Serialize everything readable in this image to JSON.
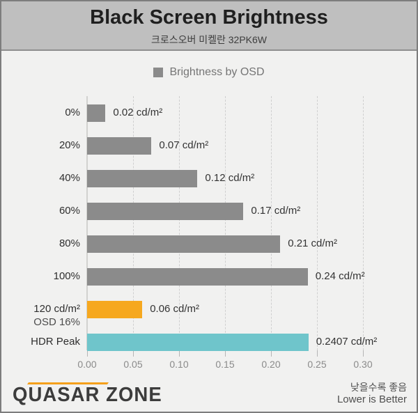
{
  "header": {
    "title": "Black Screen Brightness",
    "subtitle": "크로스오버 미켈란 32PK6W"
  },
  "legend": {
    "label": "Brightness by OSD",
    "swatch_color": "#8b8b8b"
  },
  "chart_data": {
    "type": "bar",
    "orientation": "horizontal",
    "title": "Black Screen Brightness",
    "subtitle": "크로스오버 미켈란 32PK6W",
    "series_name": "Brightness by OSD",
    "legend_position": "top-center",
    "grid": "vertical-dashed",
    "xlim": [
      0,
      0.3
    ],
    "x_ticks": [
      "0.00",
      "0.05",
      "0.10",
      "0.15",
      "0.20",
      "0.25",
      "0.30"
    ],
    "x_tick_values": [
      0.0,
      0.05,
      0.1,
      0.15,
      0.2,
      0.25,
      0.3
    ],
    "categories": [
      "0%",
      "20%",
      "40%",
      "60%",
      "80%",
      "100%",
      "120 cd/m²",
      "HDR Peak"
    ],
    "category_sublabels": [
      "",
      "",
      "",
      "",
      "",
      "",
      "OSD 16%",
      ""
    ],
    "values": [
      0.02,
      0.07,
      0.12,
      0.17,
      0.21,
      0.24,
      0.06,
      0.2407
    ],
    "value_labels": [
      "0.02 cd/m²",
      "0.07 cd/m²",
      "0.12 cd/m²",
      "0.17 cd/m²",
      "0.21 cd/m²",
      "0.24 cd/m²",
      "0.06 cd/m²",
      "0.2407 cd/m²"
    ],
    "bar_colors": [
      "#8b8b8b",
      "#8b8b8b",
      "#8b8b8b",
      "#8b8b8b",
      "#8b8b8b",
      "#8b8b8b",
      "#f6a81f",
      "#6fc5cb"
    ]
  },
  "colors": {
    "header_bg": "#bfbfbf",
    "chart_bg": "#f1f1f0",
    "bar_default": "#8b8b8b",
    "bar_highlight_orange": "#f6a81f",
    "bar_highlight_teal": "#6fc5cb",
    "logo_accent_orange": "#f5a01b"
  },
  "footer": {
    "logo_text": "QUASAR ZONE",
    "note_ko": "낮을수록 좋음",
    "note_en": "Lower is Better"
  }
}
